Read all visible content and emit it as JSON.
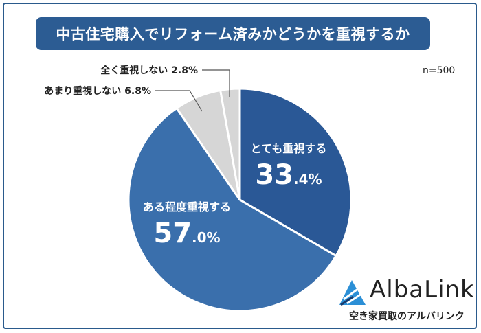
{
  "title": "中古住宅購入でリフォーム済みかどうかを重視するか",
  "sample_size": "n=500",
  "colors": {
    "frame": "#2a5a8c",
    "title_bg": "#2c5c93",
    "slice_dark": "#2a5896",
    "slice_mid": "#3a6fac",
    "slice_light": "#d6d6d6"
  },
  "chart_data": {
    "type": "pie",
    "start": "12 o'clock",
    "direction": "clockwise",
    "slices": [
      {
        "label": "とても重視する",
        "value": 33.4,
        "value_main": "33",
        "value_sub": ".4%",
        "placement": "inside"
      },
      {
        "label": "ある程度重視する",
        "value": 57.0,
        "value_main": "57",
        "value_sub": ".0%",
        "placement": "inside"
      },
      {
        "label": "あまり重視しない",
        "value": 6.8,
        "value_text": "6.8%",
        "placement": "outside"
      },
      {
        "label": "全く重視しない",
        "value": 2.8,
        "value_text": "2.8%",
        "placement": "outside"
      }
    ]
  },
  "brand": {
    "name": "AlbaLink",
    "tagline": "空き家買取のアルバリンク"
  }
}
